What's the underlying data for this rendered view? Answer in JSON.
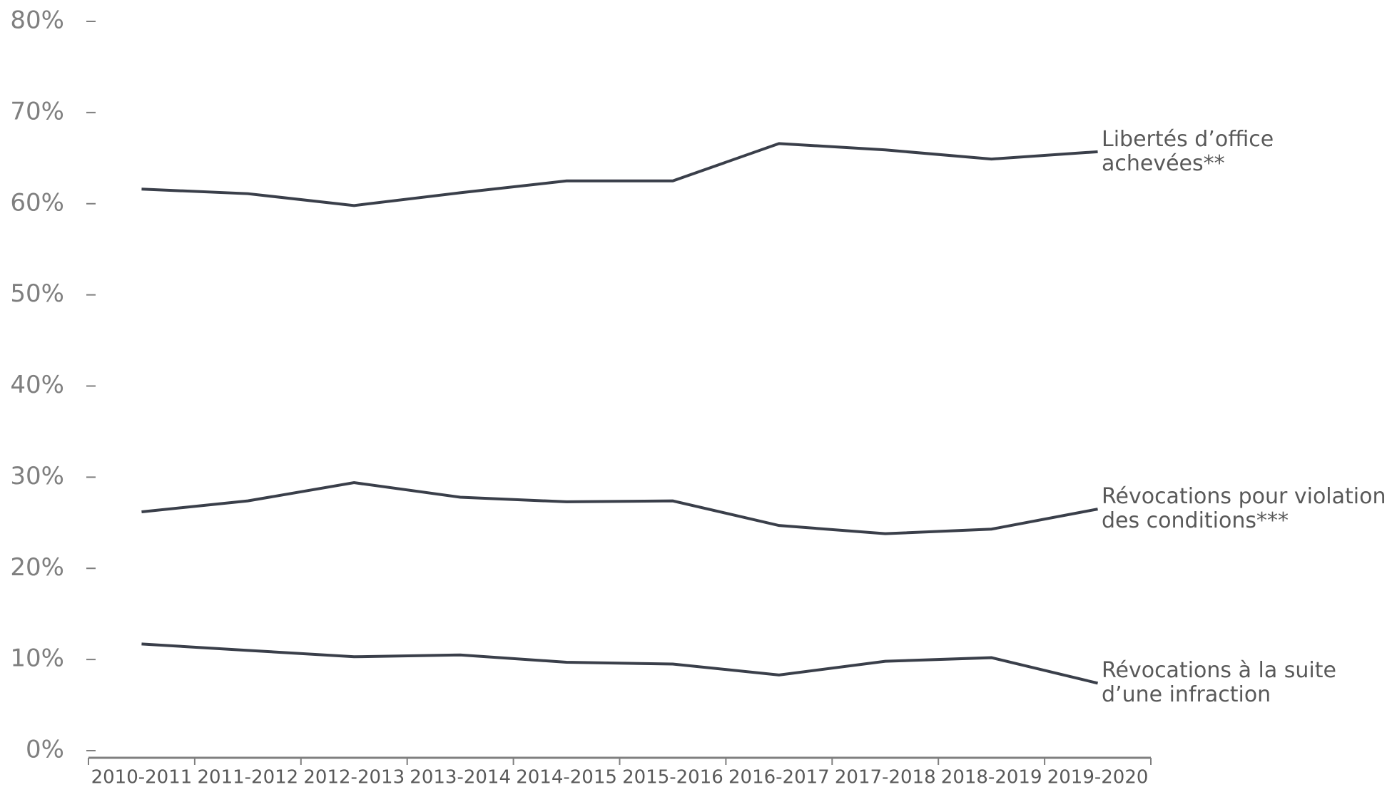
{
  "chart_data": {
    "type": "line",
    "categories": [
      "2010-2011",
      "2011-2012",
      "2012-2013",
      "2013-2014",
      "2014-2015",
      "2015-2016",
      "2016-2017",
      "2017-2018",
      "2018-2019",
      "2019-2020"
    ],
    "series": [
      {
        "name": "Libertés d’office\nachevées**",
        "color": "#3a3f4a",
        "values": [
          61.6,
          61.1,
          59.8,
          61.2,
          62.5,
          62.5,
          66.6,
          65.9,
          64.9,
          65.7
        ]
      },
      {
        "name": "Révocations pour violation\ndes conditions***",
        "color": "#3a3f4a",
        "values": [
          26.2,
          27.4,
          29.4,
          27.8,
          27.3,
          27.4,
          24.7,
          23.8,
          24.3,
          26.5
        ]
      },
      {
        "name": "Révocations à la suite\nd’une infraction",
        "color": "#3a3f4a",
        "values": [
          11.7,
          11.0,
          10.3,
          10.5,
          9.7,
          9.5,
          8.3,
          9.8,
          10.2,
          7.4
        ]
      }
    ],
    "ylim": [
      0,
      80
    ],
    "yticks": [
      {
        "value": 0,
        "label": "0%"
      },
      {
        "value": 10,
        "label": "10%"
      },
      {
        "value": 20,
        "label": "20%"
      },
      {
        "value": 30,
        "label": "30%"
      },
      {
        "value": 40,
        "label": "40%"
      },
      {
        "value": 50,
        "label": "50%"
      },
      {
        "value": 60,
        "label": "60%"
      },
      {
        "value": 70,
        "label": "70%"
      },
      {
        "value": 80,
        "label": "80%"
      }
    ]
  }
}
